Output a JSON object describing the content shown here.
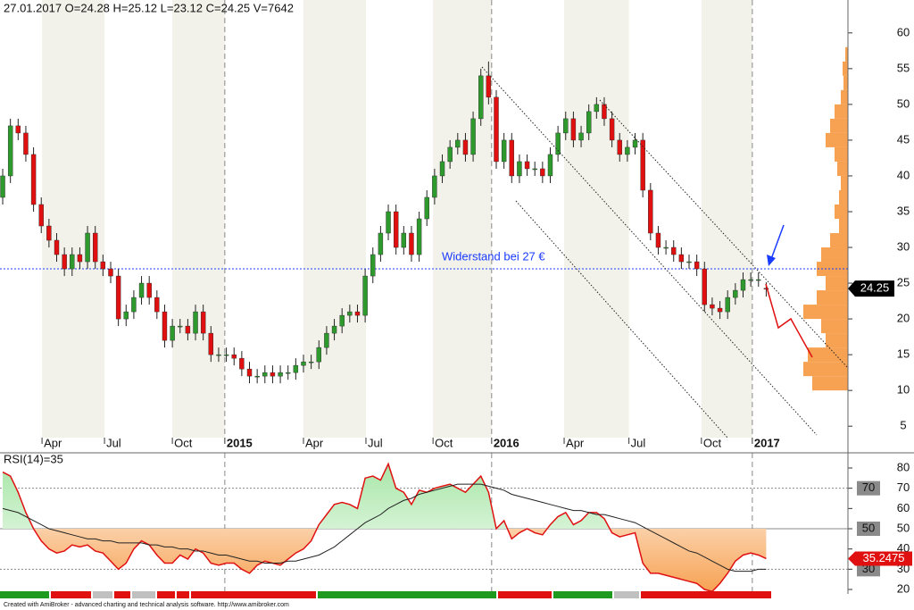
{
  "chart_data": [
    {
      "type": "candlestick",
      "title": "27.01.2017   O=24.28   H=25.12   L=23.12   C=24.25   V=7642",
      "annotation": "Widerstand bei 27 €",
      "resistance": 27,
      "up_color": "#2e9a2e",
      "down_color": "#e01010",
      "xlim": [
        -0.35,
        109.6
      ],
      "xticks": [
        {
          "value": 5.1,
          "label": "Apr"
        },
        {
          "value": 13.2,
          "label": "Jul"
        },
        {
          "value": 22.0,
          "label": "Oct"
        },
        {
          "value": 28.8,
          "label": "2015"
        },
        {
          "value": 39.0,
          "label": "Apr"
        },
        {
          "value": 47.1,
          "label": "Jul"
        },
        {
          "value": 55.8,
          "label": "Oct"
        },
        {
          "value": 63.4,
          "label": "2016"
        },
        {
          "value": 72.8,
          "label": "Apr"
        },
        {
          "value": 81.2,
          "label": "Jul"
        },
        {
          "value": 90.6,
          "label": "Oct"
        },
        {
          "value": 97.2,
          "label": "2017"
        }
      ],
      "ylim": [
        3.4,
        64.6
      ],
      "yticks": [
        5,
        10,
        15,
        20,
        25,
        30,
        35,
        40,
        45,
        50,
        55,
        60
      ],
      "open": [
        37,
        40,
        47,
        46,
        43,
        36,
        33,
        31,
        29,
        27,
        29,
        28,
        32,
        28,
        27,
        26,
        20,
        21,
        23,
        25,
        23,
        21,
        17,
        19,
        19,
        18,
        21,
        18,
        15,
        15,
        15,
        14.5,
        13,
        12,
        12,
        12.5,
        12,
        12.5,
        12.5,
        13.5,
        14,
        14,
        16,
        18,
        19,
        20.5,
        21,
        20.5,
        26,
        29,
        32,
        35,
        30,
        32,
        29,
        34,
        37,
        40,
        42,
        44,
        45,
        43,
        48,
        54,
        51,
        42,
        45,
        40,
        42,
        41,
        41,
        40,
        43,
        46,
        48,
        45,
        46,
        49,
        50,
        48,
        45,
        43,
        44,
        45,
        38,
        32,
        30,
        30,
        29,
        28,
        28,
        27,
        22,
        21.5,
        21,
        23,
        24,
        25.5,
        25.5,
        24.28
      ],
      "high": [
        41,
        48,
        48,
        47,
        44,
        37,
        34,
        32,
        30,
        30,
        30,
        33,
        33,
        29,
        28,
        27,
        22,
        24,
        26,
        26,
        24,
        22,
        20,
        20,
        20,
        22,
        22,
        19,
        16,
        16,
        16,
        15.5,
        14,
        13,
        13.5,
        13.5,
        13.5,
        13.5,
        14.5,
        15,
        15,
        17,
        19,
        20,
        21.5,
        22,
        22,
        27,
        30,
        33,
        36,
        36,
        33,
        33,
        35,
        38,
        41,
        43,
        45,
        46,
        46,
        49,
        55,
        56,
        52,
        46,
        46,
        43,
        43,
        42,
        42,
        44,
        47,
        49,
        49,
        47,
        50,
        51,
        51,
        49,
        46,
        45,
        46,
        46,
        39,
        33,
        31,
        31,
        30,
        29,
        29,
        28,
        23,
        22.5,
        24,
        25,
        26.5,
        26.5,
        26.5,
        25.12
      ],
      "low": [
        36,
        39,
        45,
        42,
        35,
        32,
        30,
        28,
        26,
        26,
        27,
        27,
        27,
        26,
        25,
        19,
        19,
        20,
        22,
        22,
        20,
        16,
        16,
        18,
        17,
        17,
        17,
        14,
        14,
        14,
        13.5,
        12,
        11,
        11,
        11,
        11,
        11,
        11.5,
        11.5,
        12.5,
        13,
        13,
        15,
        17,
        18,
        19.5,
        19.5,
        19.5,
        25,
        28,
        31,
        29,
        29,
        28,
        28,
        33,
        36,
        39,
        41,
        43,
        42,
        42,
        47,
        50,
        41,
        41,
        39,
        39,
        40,
        40,
        39,
        39,
        42,
        45,
        44,
        44,
        45,
        48,
        47,
        44,
        42,
        42,
        43,
        37,
        31,
        29,
        29,
        28,
        27,
        27,
        26,
        21,
        20.5,
        20,
        20,
        22,
        23,
        24.5,
        24.5,
        23.12
      ],
      "close": [
        40,
        47,
        46,
        43,
        36,
        33,
        31,
        29,
        27,
        29,
        28,
        32,
        28,
        27,
        26,
        20,
        21,
        23,
        25,
        23,
        21,
        17,
        19,
        19,
        18,
        21,
        18,
        15,
        15,
        15,
        14.5,
        13,
        12,
        12,
        12.5,
        12,
        12.5,
        12.5,
        13.5,
        14,
        14,
        16,
        18,
        19,
        20.5,
        21,
        20.5,
        26,
        29,
        32,
        35,
        30,
        32,
        29,
        34,
        37,
        40,
        42,
        44,
        45,
        43,
        48,
        54,
        51,
        42,
        45,
        40,
        42,
        41,
        41,
        40,
        43,
        46,
        48,
        45,
        46,
        49,
        50,
        48,
        45,
        43,
        44,
        45,
        38,
        32,
        30,
        30,
        29,
        28,
        28,
        27,
        22,
        21.5,
        21,
        23,
        24,
        25.5,
        25.5,
        25.5,
        24.25
      ],
      "volume_profile": {
        "color": "#f7a253",
        "levels": [
          11,
          13,
          15,
          17,
          19,
          21,
          23,
          25,
          27,
          29,
          31,
          33,
          35,
          37,
          39,
          41,
          43,
          45,
          47,
          49,
          51,
          53,
          55,
          57
        ],
        "values": [
          40,
          50,
          45,
          25,
          30,
          50,
          35,
          25,
          35,
          30,
          20,
          10,
          15,
          10,
          8,
          12,
          15,
          25,
          20,
          15,
          8,
          5,
          6,
          3
        ]
      }
    },
    {
      "type": "line",
      "title": "RSI(14)=35",
      "ylim": [
        17.8,
        87.5
      ],
      "yticks": [
        20,
        30,
        40,
        50,
        60,
        70,
        80
      ],
      "levels": [
        70,
        50,
        30
      ],
      "series": [
        {
          "name": "RSI(14)",
          "color": "#e01010",
          "values": [
            78,
            76,
            68,
            58,
            50,
            44,
            40,
            38,
            39,
            42,
            41,
            42,
            39,
            38,
            34,
            30,
            33,
            40,
            44,
            42,
            37,
            33,
            33,
            37,
            35,
            40,
            38,
            33,
            32,
            33,
            33,
            30,
            28,
            32,
            34,
            33,
            32,
            35,
            38,
            40,
            44,
            52,
            57,
            62,
            63,
            62,
            60,
            75,
            76,
            74,
            82,
            70,
            68,
            62,
            69,
            68,
            70,
            71,
            72,
            70,
            68,
            72,
            76,
            68,
            50,
            54,
            45,
            48,
            50,
            48,
            47,
            52,
            56,
            58,
            52,
            54,
            58,
            58,
            55,
            48,
            46,
            47,
            48,
            33,
            28,
            28,
            27,
            26,
            25,
            24,
            23,
            20,
            19,
            23,
            28,
            34,
            37,
            38,
            37,
            35.2475
          ],
          "value_label": "35.2475"
        },
        {
          "color": "#222222",
          "values": [
            60,
            59,
            58,
            56,
            54,
            52,
            50,
            49,
            48,
            47,
            46,
            45,
            45,
            44,
            44,
            43,
            43,
            43,
            43,
            42,
            42,
            41,
            41,
            40,
            40,
            39,
            39,
            38,
            37,
            37,
            36,
            35,
            34,
            34,
            33,
            33,
            33,
            34,
            34,
            35,
            36,
            37,
            39,
            41,
            44,
            47,
            50,
            53,
            55,
            57,
            60,
            62,
            64,
            65,
            67,
            68,
            69,
            70,
            71,
            72,
            72,
            72,
            72,
            71,
            70,
            69,
            67,
            66,
            65,
            64,
            63,
            62,
            61,
            60,
            59,
            59,
            58,
            57,
            57,
            56,
            55,
            54,
            53,
            51,
            49,
            47,
            45,
            43,
            41,
            39,
            38,
            36,
            34,
            32,
            30,
            29,
            29,
            29,
            30,
            30
          ]
        }
      ],
      "credit": "Created with AmiBroker - advanced charting and technical analysis software. http://www.amibroker.com"
    }
  ]
}
